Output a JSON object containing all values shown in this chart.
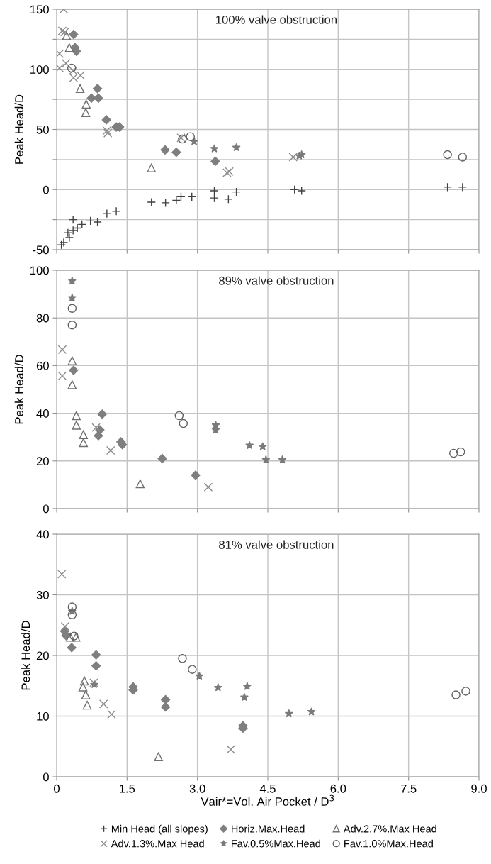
{
  "chart_data": [
    {
      "type": "scatter",
      "title": "100% valve obstruction",
      "ylabel": "Peak Head/D",
      "xlim": [
        0,
        9
      ],
      "xticks": [
        0,
        1.5,
        3,
        4.5,
        6,
        7.5,
        9
      ],
      "ylim": [
        -50,
        150
      ],
      "yticks": [
        -50,
        {
          "value": -25,
          "label": null
        },
        0,
        {
          "value": 25,
          "label": null
        },
        50,
        {
          "value": 75,
          "label": null
        },
        100,
        {
          "value": 125,
          "label": null
        },
        150
      ],
      "tick_labels": "y",
      "grid": true,
      "legend": false,
      "series": [
        {
          "color": "#404040",
          "x": [
            0.1,
            0.15,
            0.24,
            0.27,
            0.35,
            0.35,
            0.44,
            0.54,
            0.72,
            0.87,
            1.07,
            1.27,
            2.02,
            2.32,
            2.55,
            2.65,
            2.88,
            3.36,
            3.36,
            3.66,
            3.83,
            5.07,
            5.22,
            8.33,
            8.65
          ],
          "values": [
            -46,
            -44,
            -36,
            -40,
            -25,
            -34,
            -32,
            -29,
            -26,
            -27,
            -20,
            -18,
            -10.5,
            -11,
            -9,
            -6,
            -6,
            -1,
            -7,
            -8,
            -2,
            0,
            -1,
            2,
            2
          ]
        },
        {
          "marker": "diamond",
          "color": "#7f7f7f",
          "x": [
            0.36,
            0.39,
            0.42,
            0.87,
            0.74,
            0.89,
            1.06,
            1.27,
            1.34,
            2.31,
            2.55,
            3.38
          ],
          "values": [
            129,
            118,
            115,
            84,
            76,
            76,
            58,
            52,
            52,
            33,
            31,
            23.5
          ]
        },
        {
          "marker": "triangle",
          "color": "#707070",
          "x": [
            0.21,
            0.27,
            0.5,
            0.63,
            0.62,
            2.02
          ],
          "values": [
            128,
            118,
            84,
            71,
            64,
            18
          ]
        },
        {
          "marker": "cross",
          "color": "#8c8c8c",
          "x": [
            0.15,
            0.12,
            0.17,
            0.06,
            0.06,
            0.2,
            0.35,
            0.51,
            0.36,
            1.07,
            1.09,
            2.65,
            3.63,
            3.68,
            5.04
          ],
          "values": [
            150,
            132,
            131,
            113,
            101,
            105,
            99,
            95,
            93,
            49,
            47,
            43,
            14,
            15,
            27
          ]
        },
        {
          "marker": "star",
          "color": "#7a7a7a",
          "x": [
            2.93,
            3.36,
            3.83,
            5.22,
            5.17
          ],
          "values": [
            40,
            34,
            35,
            29,
            28
          ]
        },
        {
          "marker": "circle",
          "color": "#606060",
          "x": [
            0.32,
            2.68,
            2.85,
            8.33,
            8.65
          ],
          "values": [
            101,
            42,
            44,
            29,
            27
          ]
        }
      ]
    },
    {
      "type": "scatter",
      "title": "89% valve obstruction",
      "ylabel": "Peak Head/D",
      "xlim": [
        0,
        9
      ],
      "xticks": [
        0,
        1.5,
        3,
        4.5,
        6,
        7.5,
        9
      ],
      "ylim": [
        0,
        100
      ],
      "yticks": [
        0,
        20,
        40,
        60,
        80,
        100
      ],
      "tick_labels": "y",
      "grid": true,
      "legend": false,
      "series": [
        {
          "marker": "diamond",
          "color": "#7f7f7f",
          "x": [
            0.36,
            0.97,
            0.92,
            0.89,
            1.37,
            1.4,
            2.25,
            2.96
          ],
          "values": [
            58,
            39.6,
            33,
            30.6,
            28,
            26.8,
            21,
            14
          ]
        },
        {
          "marker": "triangle",
          "color": "#707070",
          "x": [
            0.33,
            0.33,
            0.42,
            0.42,
            0.57,
            0.57,
            1.78
          ],
          "values": [
            62,
            52,
            39,
            35,
            31,
            27.7,
            10.4
          ]
        },
        {
          "marker": "cross",
          "color": "#8c8c8c",
          "x": [
            0.12,
            0.12,
            0.84,
            1.15,
            3.23
          ],
          "values": [
            66.7,
            55.7,
            34,
            24.4,
            9
          ]
        },
        {
          "marker": "star",
          "color": "#7a7a7a",
          "x": [
            0.33,
            0.33,
            3.39,
            3.39,
            4.11,
            4.39,
            4.46,
            4.81
          ],
          "values": [
            95.5,
            88.4,
            33,
            35,
            26.5,
            26,
            20.5,
            20.5
          ]
        },
        {
          "marker": "circle",
          "color": "#606060",
          "x": [
            0.33,
            0.33,
            2.61,
            2.7,
            8.46,
            8.61
          ],
          "values": [
            84,
            77,
            39,
            35.7,
            23.2,
            23.8
          ]
        }
      ]
    },
    {
      "type": "scatter",
      "title": "81% valve obstruction",
      "ylabel": "Peak Head/D",
      "xlabel": "Vair*=Vol. Air Pocket / D$^{3}$",
      "xlim": [
        0,
        9
      ],
      "xticks": [
        0,
        1.5,
        {
          "value": 3,
          "label": "3.0"
        },
        4.5,
        {
          "value": 6,
          "label": "6.0"
        },
        7.5,
        {
          "value": 9,
          "label": "9.0"
        }
      ],
      "ylim": [
        0,
        40
      ],
      "yticks": [
        0,
        10,
        20,
        30,
        40
      ],
      "grid": true,
      "legend": "bottom",
      "series": [
        {
          "name": "Min Head (all slopes)",
          "color": "#404040"
        },
        {
          "name": "Horiz.Max.Head",
          "marker": "diamond",
          "color": "#7f7f7f",
          "x": [
            0.17,
            0.2,
            0.32,
            0.84,
            0.84,
            1.63,
            1.63,
            2.32,
            2.32,
            3.97,
            3.97
          ],
          "values": [
            24,
            23.3,
            21.3,
            20.1,
            18.3,
            14.8,
            14.3,
            12.7,
            11.5,
            8.4,
            8.0
          ]
        },
        {
          "name": "Adv.2.7%.Max Head",
          "marker": "triangle",
          "color": "#707070",
          "x": [
            0.29,
            0.41,
            0.59,
            0.56,
            0.62,
            0.65,
            2.17
          ],
          "values": [
            23,
            23,
            15.8,
            14.8,
            13.5,
            11.8,
            3.3
          ]
        },
        {
          "name": "Adv.1.3%.Max Head",
          "marker": "cross",
          "color": "#8c8c8c",
          "x": [
            0.11,
            0.18,
            0.79,
            1.0,
            1.17,
            3.71
          ],
          "values": [
            33.4,
            24.8,
            15.5,
            12,
            10.3,
            4.5
          ]
        },
        {
          "name": "Fav.0.5%Max.Head",
          "marker": "star",
          "color": "#7a7a7a",
          "x": [
            0.33,
            0.8,
            3.04,
            3.44,
            4.06,
            4.0,
            4.95,
            5.43
          ],
          "values": [
            27.3,
            15.2,
            16.6,
            14.7,
            14.9,
            13.1,
            10.4,
            10.7
          ]
        },
        {
          "name": "Fav.1.0%Max.Head",
          "marker": "circle",
          "color": "#606060",
          "x": [
            0.33,
            0.33,
            0.37,
            2.68,
            2.89,
            8.51,
            8.72
          ],
          "values": [
            28,
            26.7,
            23.2,
            19.5,
            17.7,
            13.5,
            14.1
          ]
        }
      ]
    }
  ]
}
